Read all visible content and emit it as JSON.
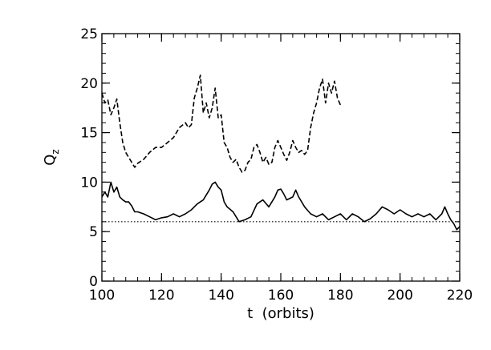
{
  "chart_data": {
    "type": "line",
    "title": "",
    "xlabel": "t  (orbits)",
    "ylabel_main": "Q",
    "ylabel_sub": "z",
    "xlim": [
      100,
      220
    ],
    "ylim": [
      0,
      25
    ],
    "x_ticks": [
      100,
      120,
      140,
      160,
      180,
      200,
      220
    ],
    "y_ticks": [
      0,
      5,
      10,
      15,
      20,
      25
    ],
    "x_tick_labels": [
      "100",
      "120",
      "140",
      "160",
      "180",
      "200",
      "220"
    ],
    "y_tick_labels": [
      "0",
      "5",
      "10",
      "15",
      "20",
      "25"
    ],
    "x_minor_step": 4,
    "y_minor_step": 1,
    "grid": false,
    "legend": "none",
    "reference_line": {
      "y": 6,
      "style": "dotted"
    },
    "series": [
      {
        "style": "dashed",
        "x": [
          100,
          101,
          102,
          103,
          104,
          105,
          106,
          107,
          108,
          109,
          110,
          111,
          112,
          114,
          116,
          118,
          120,
          122,
          124,
          126,
          128,
          129,
          130,
          131,
          132,
          133,
          134,
          135,
          136,
          137,
          138,
          139,
          140,
          141,
          142,
          143,
          144,
          145,
          146,
          147,
          148,
          149,
          150,
          151,
          152,
          153,
          154,
          155,
          156,
          157,
          158,
          159,
          160,
          161,
          162,
          163,
          164,
          165,
          166,
          167,
          168,
          169,
          170,
          171,
          172,
          173,
          174,
          175,
          176,
          177,
          178,
          179,
          180
        ],
        "y": [
          19.0,
          18.0,
          18.3,
          16.8,
          17.5,
          18.4,
          16.0,
          14.0,
          13.0,
          12.5,
          12.0,
          11.5,
          11.9,
          12.3,
          13.0,
          13.5,
          13.5,
          14.0,
          14.5,
          15.5,
          16.0,
          15.5,
          15.8,
          18.5,
          19.5,
          20.8,
          17.0,
          18.0,
          16.5,
          17.5,
          19.5,
          16.5,
          16.8,
          14.0,
          13.5,
          12.5,
          12.0,
          12.3,
          11.5,
          11.0,
          11.2,
          12.0,
          12.3,
          13.5,
          13.8,
          13.0,
          12.0,
          12.5,
          11.8,
          12.0,
          13.5,
          14.2,
          13.5,
          12.8,
          12.2,
          13.0,
          14.2,
          13.5,
          13.0,
          13.2,
          12.8,
          13.2,
          15.5,
          17.0,
          18.0,
          19.5,
          20.4,
          18.0,
          20.0,
          19.0,
          20.2,
          18.5,
          17.8
        ]
      },
      {
        "style": "solid",
        "x": [
          100,
          101,
          102,
          103,
          104,
          105,
          106,
          107,
          108,
          109,
          110,
          111,
          112,
          114,
          116,
          118,
          120,
          122,
          124,
          126,
          128,
          130,
          132,
          134,
          136,
          137,
          138,
          139,
          140,
          141,
          142,
          144,
          145,
          146,
          148,
          150,
          152,
          154,
          156,
          158,
          159,
          160,
          161,
          162,
          164,
          165,
          166,
          168,
          170,
          172,
          174,
          176,
          178,
          180,
          182,
          184,
          186,
          188,
          190,
          192,
          194,
          196,
          198,
          200,
          202,
          204,
          206,
          208,
          210,
          212,
          213,
          214,
          215,
          216,
          217,
          218,
          219,
          220
        ],
        "y": [
          8.5,
          9.0,
          8.5,
          10.0,
          9.0,
          9.5,
          8.5,
          8.2,
          8.0,
          8.0,
          7.6,
          7.0,
          7.0,
          6.8,
          6.5,
          6.2,
          6.4,
          6.5,
          6.8,
          6.5,
          6.8,
          7.2,
          7.8,
          8.2,
          9.2,
          9.8,
          10.0,
          9.5,
          9.2,
          8.0,
          7.5,
          7.0,
          6.5,
          6.0,
          6.2,
          6.5,
          7.8,
          8.2,
          7.5,
          8.5,
          9.2,
          9.3,
          8.8,
          8.2,
          8.5,
          9.2,
          8.5,
          7.5,
          6.8,
          6.5,
          6.8,
          6.2,
          6.5,
          6.8,
          6.2,
          6.8,
          6.5,
          6.0,
          6.3,
          6.8,
          7.5,
          7.2,
          6.8,
          7.2,
          6.8,
          6.5,
          6.8,
          6.5,
          6.8,
          6.2,
          6.5,
          6.8,
          7.5,
          6.8,
          6.2,
          5.8,
          5.2,
          5.5
        ]
      }
    ]
  }
}
